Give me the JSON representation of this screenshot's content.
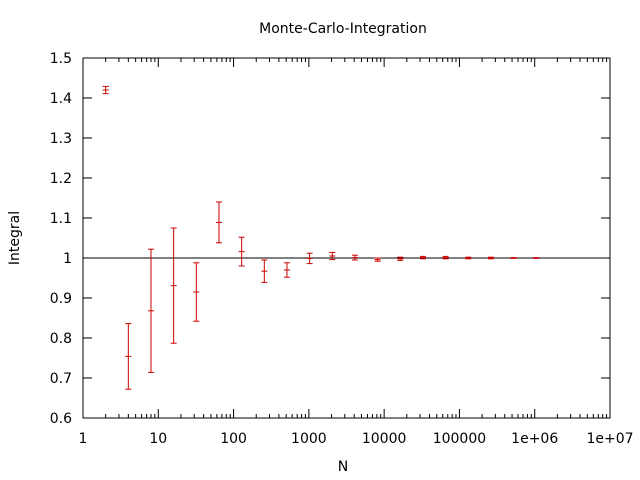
{
  "chart_data": {
    "type": "scatter",
    "title": "Monte-Carlo-Integration",
    "xlabel": "N",
    "ylabel": "Integral",
    "x_scale": "log10",
    "xlim": [
      1,
      10000000
    ],
    "ylim": [
      0.6,
      1.5
    ],
    "x_tick_labels": [
      "1",
      "10",
      "100",
      "1000",
      "10000",
      "100000",
      "1e+06",
      "1e+07"
    ],
    "x_tick_values": [
      1,
      10,
      100,
      1000,
      10000,
      100000,
      1000000,
      10000000
    ],
    "y_tick_labels": [
      "0.6",
      "0.7",
      "0.8",
      "0.9",
      "1",
      "1.1",
      "1.2",
      "1.3",
      "1.4",
      "1.5"
    ],
    "y_tick_values": [
      0.6,
      0.7,
      0.8,
      0.9,
      1.0,
      1.1,
      1.2,
      1.3,
      1.4,
      1.5
    ],
    "reference_line": {
      "y": 1.0,
      "color": "#000000"
    },
    "grid": false,
    "legend": "none",
    "series": [
      {
        "color": "#cc0000",
        "points": [
          {
            "x": 2,
            "y": 1.42,
            "err": 0.009
          },
          {
            "x": 4,
            "y": 0.754,
            "err": 0.082
          },
          {
            "x": 8,
            "y": 0.868,
            "err": 0.154
          },
          {
            "x": 16,
            "y": 0.931,
            "err": 0.144
          },
          {
            "x": 32,
            "y": 0.915,
            "err": 0.073
          },
          {
            "x": 64,
            "y": 1.089,
            "err": 0.051
          },
          {
            "x": 128,
            "y": 1.016,
            "err": 0.036
          },
          {
            "x": 256,
            "y": 0.967,
            "err": 0.028
          },
          {
            "x": 512,
            "y": 0.97,
            "err": 0.018
          },
          {
            "x": 1024,
            "y": 0.999,
            "err": 0.013
          },
          {
            "x": 2048,
            "y": 1.005,
            "err": 0.009
          },
          {
            "x": 4096,
            "y": 1.001,
            "err": 0.006
          },
          {
            "x": 8192,
            "y": 0.996,
            "err": 0.004
          },
          {
            "x": 16384,
            "y": 0.998,
            "err": 0.004
          },
          {
            "x": 32768,
            "y": 1.001,
            "err": 0.003
          },
          {
            "x": 65536,
            "y": 1.001,
            "err": 0.003
          },
          {
            "x": 131072,
            "y": 1.0,
            "err": 0.002
          },
          {
            "x": 262144,
            "y": 1.0,
            "err": 0.002
          },
          {
            "x": 524288,
            "y": 1.0,
            "err": 0.001
          },
          {
            "x": 1048576,
            "y": 1.0,
            "err": 0.001
          }
        ]
      }
    ]
  }
}
